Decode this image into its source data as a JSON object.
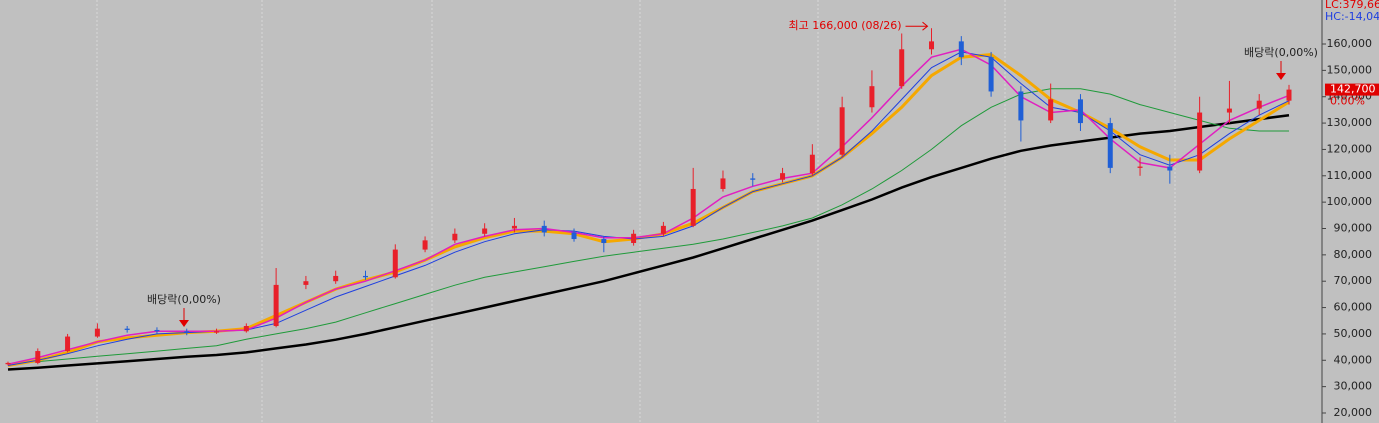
{
  "chart_data": {
    "type": "candlestick",
    "ylim": [
      16200,
      176700
    ],
    "yticks": [
      {
        "value": 20000,
        "label": "20,000"
      },
      {
        "value": 30000,
        "label": "30,000"
      },
      {
        "value": 40000,
        "label": "40,000"
      },
      {
        "value": 50000,
        "label": "50,000"
      },
      {
        "value": 60000,
        "label": "60,000"
      },
      {
        "value": 70000,
        "label": "70,000"
      },
      {
        "value": 80000,
        "label": "80,000"
      },
      {
        "value": 90000,
        "label": "90,000"
      },
      {
        "value": 100000,
        "label": "100,000"
      },
      {
        "value": 110000,
        "label": "110,000"
      },
      {
        "value": 120000,
        "label": "120,000"
      },
      {
        "value": 130000,
        "label": "130,000"
      },
      {
        "value": 140000,
        "label": "140,000"
      },
      {
        "value": 150000,
        "label": "150,000"
      },
      {
        "value": 160000,
        "label": "160,000"
      }
    ],
    "up_color": "#e8202a",
    "down_color": "#1f5fd6",
    "open": [
      38500,
      39000,
      43500,
      49000,
      52000,
      51500,
      51000,
      50500,
      51000,
      53000,
      68600,
      70000,
      72000,
      71500,
      82000,
      85500,
      88000,
      90000,
      91000,
      88500,
      86000,
      84500,
      88000,
      91000,
      105000,
      109000,
      108500,
      111000,
      118000,
      136000,
      144000,
      158000,
      161000,
      155000,
      142000,
      131000,
      139000,
      130000,
      113000,
      113500,
      112000,
      134000,
      135500,
      138500
    ],
    "high": [
      39500,
      44500,
      50000,
      54000,
      53000,
      52500,
      52000,
      52000,
      54000,
      75000,
      72000,
      74000,
      74000,
      84000,
      87000,
      90000,
      92000,
      94000,
      93000,
      90000,
      87000,
      89500,
      92500,
      113000,
      112000,
      111000,
      113000,
      122000,
      140000,
      150000,
      164000,
      166000,
      163000,
      157000,
      144000,
      145000,
      141000,
      132000,
      117000,
      118000,
      140000,
      146000,
      141000,
      144500
    ],
    "low": [
      38000,
      38500,
      43000,
      48500,
      50500,
      50000,
      49500,
      50000,
      50500,
      52500,
      67000,
      69000,
      70500,
      71000,
      81000,
      84500,
      87000,
      88500,
      87000,
      85000,
      81000,
      83500,
      87000,
      90500,
      104000,
      106000,
      107500,
      110000,
      117000,
      134000,
      143000,
      156000,
      152000,
      140000,
      123000,
      130000,
      127000,
      111000,
      110000,
      107000,
      111000,
      130000,
      133000,
      137000
    ],
    "close": [
      39000,
      43500,
      49000,
      52000,
      51500,
      51000,
      50500,
      51000,
      53000,
      68600,
      70000,
      72000,
      71500,
      82000,
      85500,
      88000,
      90000,
      91000,
      88500,
      86000,
      84500,
      88000,
      91000,
      105000,
      109000,
      108500,
      111000,
      118000,
      136000,
      144000,
      158000,
      161000,
      155000,
      142000,
      131000,
      139000,
      130000,
      113000,
      113500,
      112000,
      134000,
      135500,
      138500,
      142700
    ],
    "lines": [
      {
        "color": "#000000",
        "width": 2.5,
        "values": [
          36500,
          37200,
          38000,
          38800,
          39600,
          40500,
          41300,
          42000,
          43000,
          44500,
          46000,
          47800,
          50000,
          52500,
          55000,
          57500,
          60000,
          62500,
          65000,
          67500,
          70000,
          73000,
          76000,
          79000,
          82500,
          86000,
          89500,
          93000,
          97000,
          101000,
          105500,
          109500,
          113000,
          116500,
          119500,
          121500,
          123000,
          124500,
          126000,
          127000,
          128500,
          130000,
          131500,
          133000
        ]
      },
      {
        "color": "#1f9a3a",
        "width": 1,
        "values": [
          38500,
          39500,
          40500,
          41500,
          42500,
          43500,
          44500,
          45500,
          48000,
          50000,
          52000,
          54500,
          58000,
          61500,
          65000,
          68500,
          71500,
          73500,
          75500,
          77500,
          79500,
          81000,
          82500,
          84000,
          86000,
          88500,
          91000,
          94000,
          99000,
          105000,
          112000,
          120000,
          129000,
          136000,
          141000,
          143000,
          143000,
          141000,
          137000,
          134000,
          131000,
          128000,
          127000,
          127000
        ]
      },
      {
        "color": "#f5a800",
        "width": 3,
        "values": [
          38000,
          40000,
          43000,
          47000,
          48500,
          49500,
          50500,
          51000,
          52000,
          57000,
          62000,
          67000,
          70500,
          73500,
          78000,
          83000,
          86500,
          89000,
          89000,
          88000,
          85000,
          86000,
          88000,
          92000,
          98000,
          104000,
          107000,
          110000,
          117000,
          126000,
          136000,
          148000,
          155000,
          156000,
          148000,
          139000,
          134000,
          128000,
          121000,
          116000,
          116000,
          124000,
          131000,
          138000
        ]
      },
      {
        "color": "#1f3fe0",
        "width": 1,
        "values": [
          38000,
          40000,
          42500,
          45500,
          48000,
          50000,
          50500,
          51000,
          51500,
          54000,
          59000,
          64000,
          68000,
          72000,
          76000,
          81000,
          85000,
          88000,
          89500,
          89000,
          87000,
          86000,
          87000,
          91000,
          98000,
          104000,
          107000,
          110000,
          117000,
          127000,
          139000,
          151000,
          157000,
          155000,
          145000,
          136000,
          134000,
          127000,
          118000,
          114000,
          118000,
          126000,
          133000,
          138500
        ]
      },
      {
        "color": "#e020c0",
        "width": 1.5,
        "values": [
          38500,
          41000,
          44000,
          47000,
          49500,
          51000,
          51000,
          51000,
          51500,
          56000,
          62000,
          67000,
          70000,
          74000,
          78000,
          84000,
          87000,
          89500,
          90000,
          88500,
          86500,
          86500,
          88000,
          94000,
          102000,
          106000,
          109000,
          111000,
          121000,
          132000,
          144000,
          155000,
          158000,
          152000,
          140000,
          134000,
          135000,
          124000,
          115000,
          113000,
          122000,
          131000,
          136000,
          140500
        ]
      }
    ],
    "last_price": {
      "value": 142700,
      "label": "142,700"
    },
    "change_label": "0.00%",
    "lc_label": "LC:379,66",
    "hc_label": "HC:-14,04",
    "high_annotation": "최고 166,000 (08/26)",
    "dividend_annotations": [
      "배당락(0,00%)",
      "배당락(0,00%)"
    ]
  }
}
